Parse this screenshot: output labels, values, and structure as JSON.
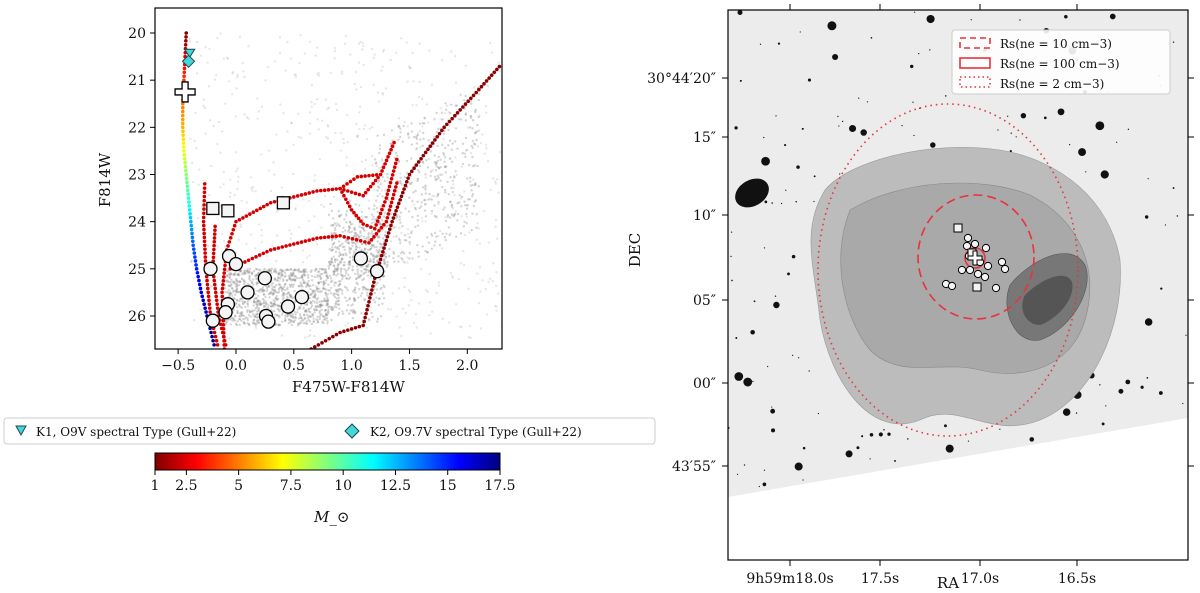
{
  "chart_data": [
    {
      "type": "scatter",
      "xlabel": "F475W-F814W",
      "ylabel": "F814W",
      "xlim": [
        -0.7,
        2.3
      ],
      "ylim": [
        26.7,
        19.47
      ],
      "xticks": [
        -0.5,
        0.0,
        0.5,
        1.0,
        1.5,
        2.0
      ],
      "xtick_labels": [
        "−0.5",
        "0.0",
        "0.5",
        "1.0",
        "1.5",
        "2.0"
      ],
      "yticks": [
        20,
        21,
        22,
        23,
        24,
        25,
        26
      ],
      "ytick_labels": [
        "20",
        "21",
        "22",
        "23",
        "24",
        "25",
        "26"
      ],
      "background_points_color": "#888888",
      "circles": [
        [
          -0.22,
          25.0
        ],
        [
          -0.06,
          24.73
        ],
        [
          0.0,
          24.9
        ],
        [
          0.1,
          25.5
        ],
        [
          0.25,
          25.2
        ],
        [
          -0.07,
          25.75
        ],
        [
          -0.09,
          25.92
        ],
        [
          -0.2,
          26.1
        ],
        [
          0.26,
          26.0
        ],
        [
          0.28,
          26.12
        ],
        [
          0.45,
          25.8
        ],
        [
          0.57,
          25.6
        ],
        [
          1.08,
          24.78
        ],
        [
          1.22,
          25.05
        ]
      ],
      "squares": [
        [
          -0.2,
          23.72
        ],
        [
          -0.07,
          23.77
        ],
        [
          0.41,
          23.6
        ]
      ],
      "cross": [
        -0.44,
        21.25
      ],
      "k1": [
        -0.4,
        20.43
      ],
      "k2": [
        -0.41,
        20.6
      ],
      "isochrone_colored": [
        [
          -0.43,
          20.0,
          17.5
        ],
        [
          -0.44,
          20.5,
          16
        ],
        [
          -0.45,
          21.0,
          14.5
        ],
        [
          -0.46,
          21.5,
          13.5
        ],
        [
          -0.46,
          22.0,
          12.5
        ],
        [
          -0.45,
          22.5,
          11
        ],
        [
          -0.43,
          23.0,
          9.5
        ],
        [
          -0.41,
          23.5,
          8
        ],
        [
          -0.39,
          24.0,
          6
        ],
        [
          -0.37,
          24.5,
          4.5
        ],
        [
          -0.34,
          25.0,
          3.5
        ],
        [
          -0.3,
          25.5,
          2.5
        ],
        [
          -0.25,
          26.0,
          1.8
        ],
        [
          -0.18,
          26.7,
          1.2
        ]
      ],
      "isochrones_red": [
        [
          [
            -0.27,
            23.2
          ],
          [
            -0.28,
            24.0
          ],
          [
            -0.26,
            25.0
          ],
          [
            -0.22,
            26.0
          ],
          [
            -0.15,
            26.7
          ]
        ],
        [
          [
            -0.18,
            24.1
          ],
          [
            -0.2,
            25.0
          ],
          [
            -0.15,
            26.0
          ],
          [
            -0.08,
            26.7
          ]
        ],
        [
          [
            -0.1,
            26.7
          ],
          [
            -0.12,
            25.5
          ],
          [
            -0.08,
            24.6
          ],
          [
            0.0,
            24.0
          ],
          [
            0.3,
            23.6
          ],
          [
            0.7,
            23.35
          ],
          [
            0.9,
            23.3
          ],
          [
            1.05,
            23.05
          ],
          [
            1.25,
            23.0
          ],
          [
            1.38,
            22.25
          ]
        ],
        [
          [
            0.9,
            23.3
          ],
          [
            1.0,
            23.75
          ],
          [
            1.1,
            24.05
          ],
          [
            1.2,
            24.15
          ],
          [
            1.3,
            23.5
          ],
          [
            1.4,
            22.6
          ]
        ],
        [
          [
            -0.05,
            25.0
          ],
          [
            0.3,
            24.6
          ],
          [
            0.7,
            24.35
          ],
          [
            0.9,
            24.3
          ],
          [
            1.15,
            24.45
          ],
          [
            1.3,
            24.0
          ],
          [
            1.4,
            23.1
          ]
        ],
        [
          [
            0.65,
            26.7
          ],
          [
            0.9,
            26.35
          ],
          [
            1.1,
            26.2
          ],
          [
            1.2,
            25.2
          ],
          [
            1.35,
            24.0
          ],
          [
            1.5,
            23.0
          ],
          [
            1.8,
            22.0
          ],
          [
            2.1,
            21.2
          ],
          [
            2.3,
            20.65
          ]
        ],
        [
          [
            0.9,
            23.3
          ],
          [
            1.1,
            23.45
          ],
          [
            1.25,
            23.0
          ]
        ]
      ],
      "isochrone_red_color": "#d40000",
      "isochrone_dark_color": "#8b0000"
    },
    {
      "type": "colorbar",
      "label": "M_⊙",
      "colormap": "jet_r",
      "range": [
        1,
        17.5
      ],
      "ticks": [
        1,
        2.5,
        5,
        7.5,
        10,
        12.5,
        15,
        17.5
      ],
      "tick_labels": [
        "1",
        "2.5",
        "5",
        "7.5",
        "10",
        "12.5",
        "15",
        "17.5"
      ]
    },
    {
      "type": "image",
      "xlabel": "RA",
      "ylabel": "DEC",
      "xtick_labels": [
        "9h59m18.0s",
        "17.5s",
        "17.0s",
        "16.5s"
      ],
      "ytick_labels": [
        "30°44′20″",
        "15″",
        "10″",
        "05″",
        "00″",
        "43′55″"
      ],
      "circle_color": "#e8323c"
    }
  ],
  "legend": {
    "k1": "K1, O9V spectral Type (Gull+22)",
    "k2": "K2, O9.7V spectral Type (Gull+22)",
    "k_color": "#40d8d8",
    "rs10": "Rs(ne = 10 cm−3)",
    "rs100": "Rs(ne = 100 cm−3)",
    "rs2": "Rs(ne = 2 cm−3)"
  }
}
